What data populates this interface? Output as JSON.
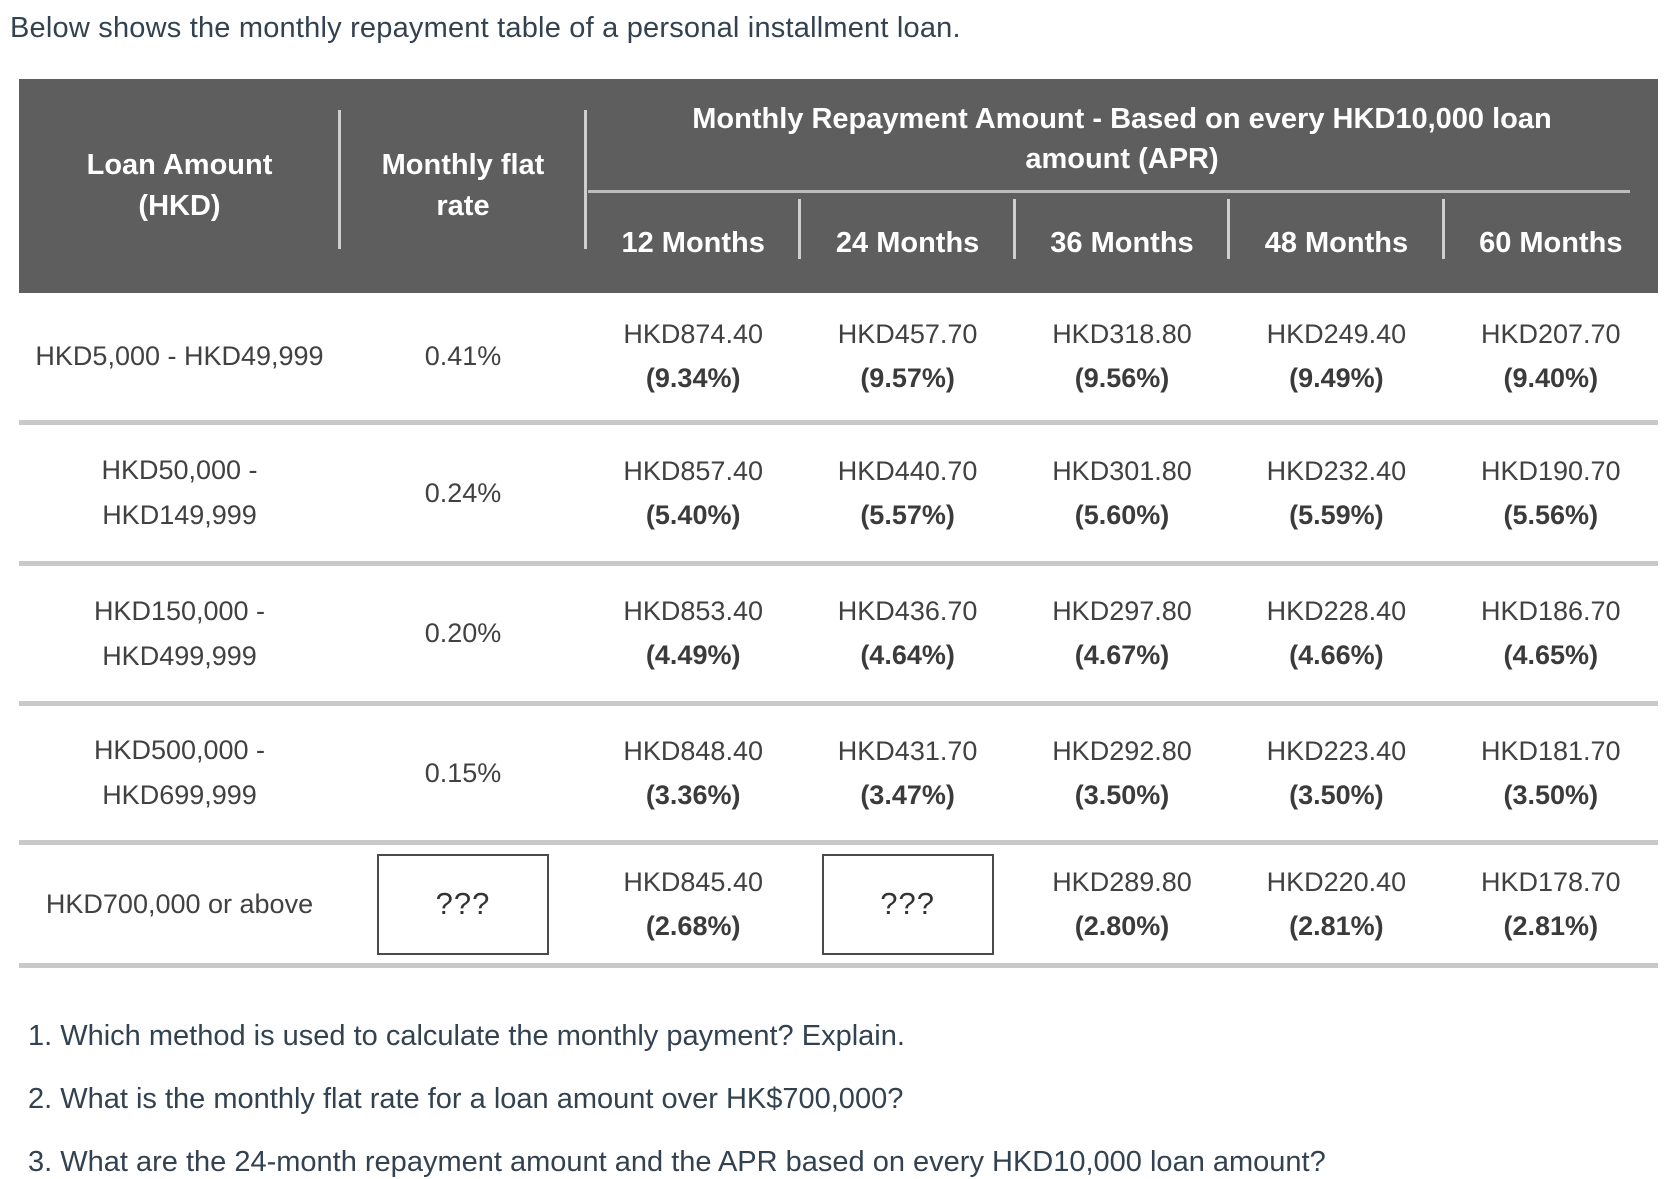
{
  "intro": "Below shows the monthly repayment table of a personal installment loan.",
  "colors": {
    "header_bg": "#5e5e5e",
    "header_text": "#ffffff",
    "body_text": "#414141",
    "heading_text": "#334250",
    "row_separator": "#c9c9c9"
  },
  "table": {
    "header": {
      "loan_line1": "Loan Amount",
      "loan_line2": "(HKD)",
      "rate_line1": "Monthly flat",
      "rate_line2": "rate",
      "group_title": "Monthly Repayment Amount - Based on every HKD10,000 loan amount (APR)",
      "months": [
        "12 Months",
        "24 Months",
        "36 Months",
        "48 Months",
        "60 Months"
      ]
    },
    "rows": [
      {
        "loan": [
          "HKD5,000 - HKD49,999"
        ],
        "rate": "0.41%",
        "m12": [
          "HKD874.40",
          "(9.34%)"
        ],
        "m24": [
          "HKD457.70",
          "(9.57%)"
        ],
        "m36": [
          "HKD318.80",
          "(9.56%)"
        ],
        "m48": [
          "HKD249.40",
          "(9.49%)"
        ],
        "m60": [
          "HKD207.70",
          "(9.40%)"
        ]
      },
      {
        "loan": [
          "HKD50,000 -",
          "HKD149,999"
        ],
        "rate": "0.24%",
        "m12": [
          "HKD857.40",
          "(5.40%)"
        ],
        "m24": [
          "HKD440.70",
          "(5.57%)"
        ],
        "m36": [
          "HKD301.80",
          "(5.60%)"
        ],
        "m48": [
          "HKD232.40",
          "(5.59%)"
        ],
        "m60": [
          "HKD190.70",
          "(5.56%)"
        ]
      },
      {
        "loan": [
          "HKD150,000 -",
          "HKD499,999"
        ],
        "rate": "0.20%",
        "m12": [
          "HKD853.40",
          "(4.49%)"
        ],
        "m24": [
          "HKD436.70",
          "(4.64%)"
        ],
        "m36": [
          "HKD297.80",
          "(4.67%)"
        ],
        "m48": [
          "HKD228.40",
          "(4.66%)"
        ],
        "m60": [
          "HKD186.70",
          "(4.65%)"
        ]
      },
      {
        "loan": [
          "HKD500,000 -",
          "HKD699,999"
        ],
        "rate": "0.15%",
        "m12": [
          "HKD848.40",
          "(3.36%)"
        ],
        "m24": [
          "HKD431.70",
          "(3.47%)"
        ],
        "m36": [
          "HKD292.80",
          "(3.50%)"
        ],
        "m48": [
          "HKD223.40",
          "(3.50%)"
        ],
        "m60": [
          "HKD181.70",
          "(3.50%)"
        ]
      },
      {
        "loan": [
          "HKD700,000 or above"
        ],
        "rate": "???",
        "m12": [
          "HKD845.40",
          "(2.68%)"
        ],
        "m24": [
          "???"
        ],
        "m36": [
          "HKD289.80",
          "(2.80%)"
        ],
        "m48": [
          "HKD220.40",
          "(2.81%)"
        ],
        "m60": [
          "HKD178.70",
          "(2.81%)"
        ]
      }
    ]
  },
  "questions": [
    "1. Which method is used to calculate the monthly payment? Explain.",
    "2. What is the monthly flat rate for a loan amount over HK$700,000?",
    "3. What are the 24-month repayment amount and the APR based on every HKD10,000 loan amount?"
  ]
}
